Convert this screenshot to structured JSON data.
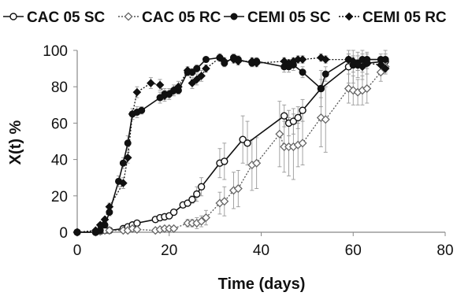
{
  "chart_data": {
    "type": "line",
    "xlabel": "Time (days)",
    "ylabel": "X(t) %",
    "xlim": [
      0,
      80
    ],
    "ylim": [
      0,
      100
    ],
    "xticks": [
      "0",
      "20",
      "40",
      "60",
      "80"
    ],
    "yticks": [
      "0",
      "20",
      "40",
      "60",
      "80",
      "100"
    ],
    "grid": "none",
    "legend": "top",
    "series": [
      {
        "name": "CAC 05 SC",
        "marker": "open-circle",
        "line": "solid",
        "x": [
          0,
          4,
          5,
          6,
          7,
          10,
          11,
          12,
          13,
          17,
          18,
          19,
          20,
          21,
          23,
          24,
          25,
          26,
          27,
          31,
          32,
          36,
          37,
          45,
          46,
          47,
          48,
          49,
          53,
          59,
          60,
          61,
          62,
          63,
          67
        ],
        "y": [
          0,
          0,
          0.5,
          1,
          1,
          2,
          3,
          4,
          5,
          7,
          8,
          8.5,
          9,
          11,
          15,
          16,
          18,
          21,
          25,
          38,
          39,
          51,
          49,
          64,
          60,
          61,
          63,
          67,
          79,
          91,
          92,
          92,
          93,
          93,
          94
        ],
        "err": [
          0,
          0,
          0,
          0,
          0,
          0,
          0,
          0,
          0,
          0,
          0,
          0,
          0,
          0,
          1,
          1,
          2,
          4,
          5,
          8,
          10,
          13,
          12,
          6,
          7,
          7,
          6,
          6,
          10,
          9,
          10,
          7,
          9,
          6,
          6
        ]
      },
      {
        "name": "CAC 05 RC",
        "marker": "open-diamond",
        "line": "dotted",
        "x": [
          0,
          4,
          5,
          6,
          7,
          10,
          11,
          12,
          13,
          17,
          18,
          19,
          20,
          21,
          24,
          25,
          26,
          27,
          28,
          31,
          32,
          34,
          35,
          38,
          39,
          44,
          45,
          46,
          47,
          48,
          49,
          53,
          54,
          59,
          60,
          61,
          62,
          63,
          66,
          67
        ],
        "y": [
          0,
          0,
          0.5,
          1,
          1,
          1,
          1,
          2,
          1.5,
          1,
          1.5,
          2,
          2,
          2,
          5,
          5,
          5,
          6,
          8,
          16,
          17,
          23,
          24,
          37,
          38,
          54,
          47,
          47,
          47,
          48,
          49,
          63,
          62,
          79,
          78,
          77,
          78,
          79,
          88,
          91
        ],
        "err": [
          0,
          0,
          0,
          0,
          0,
          0,
          0,
          0,
          0,
          0,
          0,
          0,
          0,
          0,
          2,
          2,
          3,
          3,
          4,
          6,
          8,
          10,
          10,
          14,
          14,
          18,
          14,
          16,
          18,
          12,
          12,
          16,
          18,
          8,
          8,
          7,
          8,
          8,
          5,
          4
        ]
      },
      {
        "name": "CEMI 05 SC",
        "marker": "filled-circle",
        "line": "solid",
        "x": [
          0,
          4,
          5,
          6,
          7,
          9,
          10,
          11,
          12,
          13,
          14,
          18,
          19,
          20,
          21,
          22,
          24,
          25,
          26,
          28,
          31,
          32,
          34,
          35,
          38,
          39,
          45,
          46,
          47,
          49,
          53,
          54,
          59,
          60,
          61,
          62,
          63,
          66,
          67
        ],
        "y": [
          0,
          0,
          1,
          4,
          11,
          28,
          38,
          49,
          65,
          66,
          67,
          74,
          76,
          76,
          78,
          78,
          88,
          88,
          90,
          95,
          96,
          93,
          96,
          95,
          93,
          94,
          91,
          91,
          92,
          88,
          79,
          87,
          95,
          92,
          93,
          95,
          95,
          95,
          95
        ],
        "err": [
          0,
          0,
          0,
          1,
          2,
          3,
          3,
          4,
          3,
          3,
          2,
          3,
          3,
          2,
          2,
          2,
          2,
          2,
          2,
          1,
          2,
          2,
          2,
          2,
          2,
          2,
          3,
          3,
          3,
          3,
          5,
          4,
          3,
          4,
          4,
          3,
          3,
          3,
          3
        ]
      },
      {
        "name": "CEMI 05 RC",
        "marker": "filled-diamond",
        "line": "dotted",
        "x": [
          0,
          4,
          5,
          6,
          7,
          10,
          11,
          12,
          13,
          16,
          18,
          19,
          20,
          21,
          22,
          24,
          25,
          26,
          27,
          28,
          31,
          32,
          34,
          35,
          38,
          39,
          45,
          46,
          47,
          48,
          49,
          53,
          54,
          59,
          60,
          61,
          62,
          63,
          66,
          67
        ],
        "y": [
          0,
          1,
          4,
          7,
          14,
          27,
          41,
          65,
          77,
          82,
          81,
          75,
          76,
          78,
          80,
          89,
          82,
          84,
          86,
          90,
          96,
          94,
          95,
          94,
          94,
          93,
          94,
          93,
          94,
          95,
          95,
          96,
          95,
          95,
          94,
          92,
          91,
          93,
          92,
          90
        ],
        "err": [
          0,
          0,
          0,
          1,
          2,
          3,
          3,
          3,
          3,
          3,
          3,
          3,
          3,
          3,
          3,
          2,
          3,
          3,
          3,
          2,
          2,
          2,
          2,
          2,
          2,
          2,
          2,
          2,
          2,
          2,
          2,
          2,
          2,
          3,
          3,
          3,
          3,
          3,
          3,
          3
        ]
      }
    ]
  }
}
